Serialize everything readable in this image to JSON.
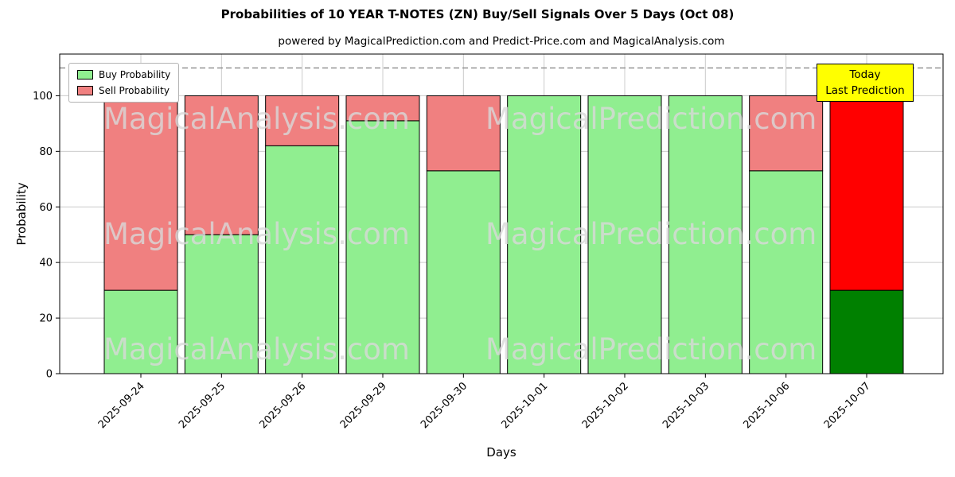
{
  "chart_data": {
    "type": "bar",
    "stacked": true,
    "title": "Probabilities of 10 YEAR T-NOTES (ZN) Buy/Sell Signals Over 5 Days (Oct 08)",
    "subtitle": "powered by MagicalPrediction.com and Predict-Price.com and MagicalAnalysis.com",
    "xlabel": "Days",
    "ylabel": "Probability",
    "categories": [
      "2025-09-24",
      "2025-09-25",
      "2025-09-26",
      "2025-09-29",
      "2025-09-30",
      "2025-10-01",
      "2025-10-02",
      "2025-10-03",
      "2025-10-06",
      "2025-10-07"
    ],
    "series": [
      {
        "name": "Buy Probability",
        "color": "#90EE90",
        "values": [
          30,
          50,
          82,
          91,
          73,
          100,
          100,
          100,
          73,
          30
        ]
      },
      {
        "name": "Sell Probability",
        "color": "#F08080",
        "values": [
          70,
          50,
          18,
          9,
          27,
          0,
          0,
          0,
          27,
          70
        ]
      }
    ],
    "last_bar_colors": {
      "buy": "#008000",
      "sell": "#FF0000"
    },
    "yticks": [
      0,
      20,
      40,
      60,
      80,
      100
    ],
    "ylim": [
      0,
      115
    ],
    "dashed_line_y": 110,
    "grid": true,
    "legend_position": "upper left",
    "annotation": {
      "lines": [
        "Today",
        "Last Prediction"
      ],
      "bg": "#FFFF00"
    },
    "watermarks": [
      "MagicalAnalysis.com",
      "MagicalPrediction.com"
    ]
  }
}
